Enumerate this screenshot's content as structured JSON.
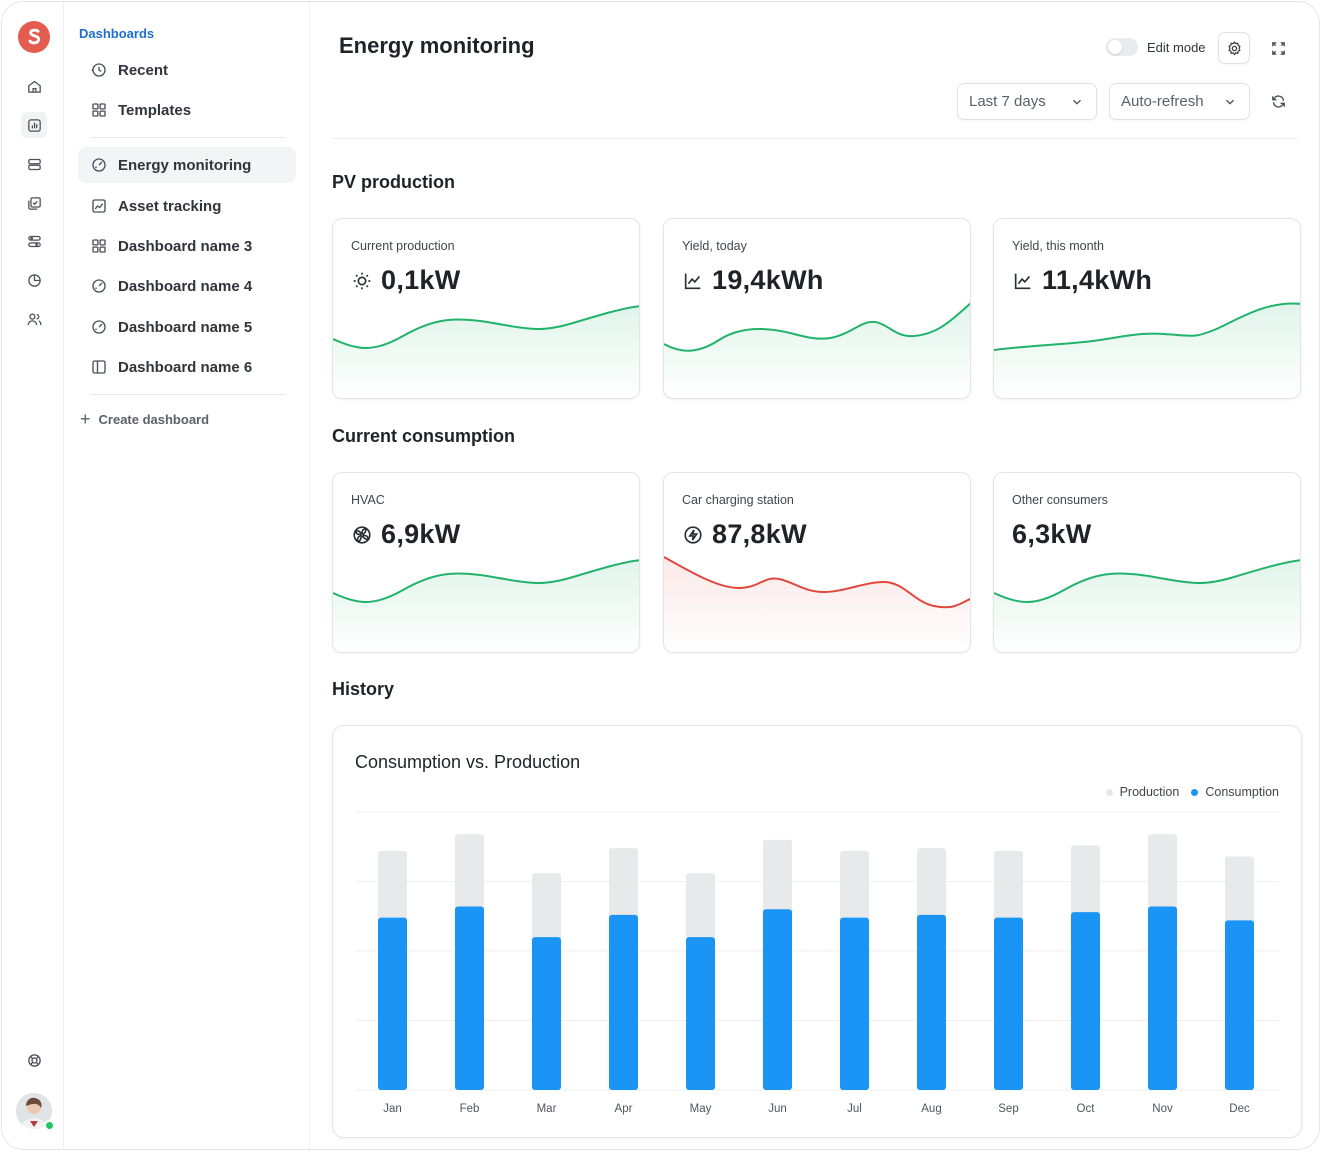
{
  "sidebar": {
    "heading": "Dashboards",
    "top_items": [
      {
        "label": "Recent",
        "icon": "clock-icon"
      },
      {
        "label": "Templates",
        "icon": "grid-icon"
      }
    ],
    "dashboards": [
      {
        "label": "Energy monitoring",
        "icon": "gauge-icon",
        "active": true
      },
      {
        "label": "Asset tracking",
        "icon": "chart-image-icon"
      },
      {
        "label": "Dashboard name 3",
        "icon": "grid-icon"
      },
      {
        "label": "Dashboard name 4",
        "icon": "gauge-icon"
      },
      {
        "label": "Dashboard name 5",
        "icon": "gauge-icon"
      },
      {
        "label": "Dashboard name 6",
        "icon": "panel-icon"
      }
    ],
    "create_label": "Create dashboard"
  },
  "header": {
    "title": "Energy monitoring",
    "edit_mode_label": "Edit mode",
    "range_select": "Last 7 days",
    "refresh_select": "Auto-refresh"
  },
  "sections": {
    "pv": "PV production",
    "consumption": "Current consumption",
    "history": "History"
  },
  "pv_cards": [
    {
      "label": "Current production",
      "value": "0,1kW",
      "icon": "sun-icon",
      "trend": "up",
      "color": "#22b36b"
    },
    {
      "label": "Yield, today",
      "value": "19,4kWh",
      "icon": "line-chart-icon",
      "trend": "up",
      "color": "#22b36b"
    },
    {
      "label": "Yield, this month",
      "value": "11,4kWh",
      "icon": "line-chart-icon",
      "trend": "up",
      "color": "#22b36b"
    }
  ],
  "consumption_cards": [
    {
      "label": "HVAC",
      "value": "6,9kW",
      "icon": "fan-icon",
      "trend": "up",
      "color": "#22b36b"
    },
    {
      "label": "Car charging station",
      "value": "87,8kW",
      "icon": "bolt-circle-icon",
      "trend": "down",
      "color": "#e0483e"
    },
    {
      "label": "Other consumers",
      "value": "6,3kW",
      "icon": "",
      "trend": "up",
      "color": "#22b36b"
    }
  ],
  "history": {
    "chart_title": "Consumption vs. Production",
    "legend": {
      "production": "Production",
      "consumption": "Consumption"
    }
  },
  "colors": {
    "production": "#e8e9eb",
    "consumption": "#1a95f5",
    "accent": "#1e6fd0"
  },
  "chart_data": {
    "type": "bar",
    "title": "Consumption vs. Production",
    "categories": [
      "Jan",
      "Feb",
      "Mar",
      "Apr",
      "May",
      "Jun",
      "Jul",
      "Aug",
      "Sep",
      "Oct",
      "Nov",
      "Dec"
    ],
    "series": [
      {
        "name": "Production",
        "values": [
          86,
          92,
          78,
          87,
          78,
          90,
          86,
          87,
          86,
          88,
          92,
          84
        ]
      },
      {
        "name": "Consumption",
        "values": [
          62,
          66,
          55,
          63,
          55,
          65,
          62,
          63,
          62,
          64,
          66,
          61
        ]
      }
    ],
    "ylim": [
      0,
      100
    ],
    "grid": true,
    "legend": "top-right",
    "xlabel": "",
    "ylabel": ""
  }
}
